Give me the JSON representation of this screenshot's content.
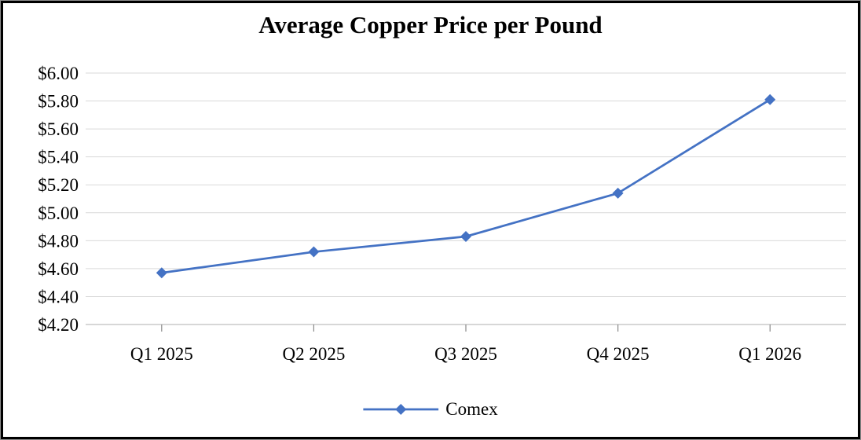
{
  "frame": {
    "outer_border_color": "#8C8C8C",
    "inner_border_color": "#000000",
    "background_color": "#FFFFFF"
  },
  "chart_data": {
    "type": "line",
    "title": "Average Copper Price per Pound",
    "categories": [
      "Q1 2025",
      "Q2 2025",
      "Q3 2025",
      "Q4 2025",
      "Q1 2026"
    ],
    "series": [
      {
        "name": "Comex",
        "values": [
          4.57,
          4.72,
          4.83,
          5.14,
          5.81
        ]
      }
    ],
    "xlabel": "",
    "ylabel": "",
    "ylim": [
      4.2,
      6.0
    ],
    "y_tick_step": 0.2,
    "y_tick_labels": [
      "$6.00",
      "$5.80",
      "$5.60",
      "$5.40",
      "$5.20",
      "$5.00",
      "$4.80",
      "$4.60",
      "$4.40",
      "$4.20"
    ],
    "grid": true,
    "legend_position": "bottom-center",
    "marker_shape": "diamond",
    "colors": {
      "series": "#4472C4",
      "gridline": "#D9D9D9",
      "axis_line": "#BFBFBF",
      "tick": "#898989",
      "text": "#000000"
    }
  }
}
